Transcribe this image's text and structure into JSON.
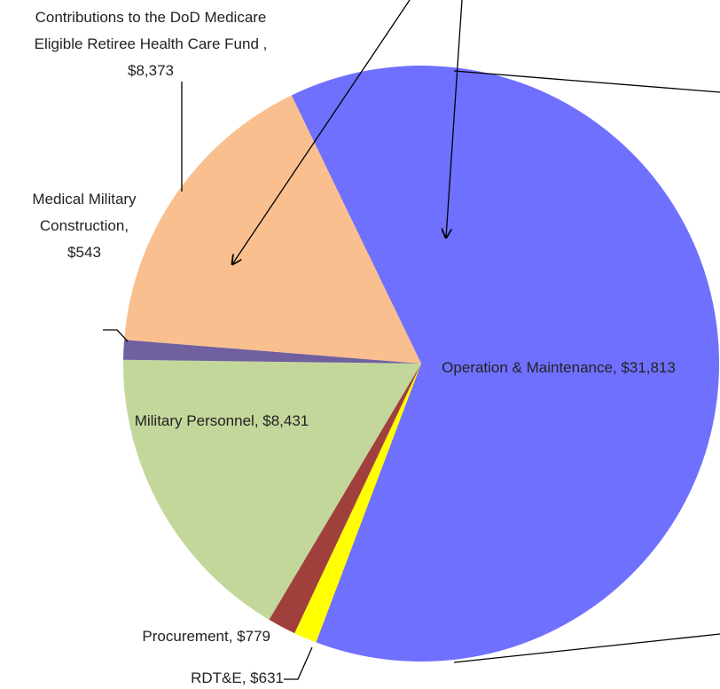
{
  "chart_data": {
    "type": "pie",
    "values": [
      31813,
      631,
      779,
      8431,
      543,
      8373
    ],
    "value_labels": [
      "Operation & Maintenance, $31,813",
      "RDT&E, $631",
      "Procurement, $779",
      "Military Personnel, $8,431",
      "Medical Military Construction, $543",
      "Contributions to the DoD Medicare Eligible Retiree Health Care Fund , $8,373"
    ],
    "colors": [
      "#7070ff",
      "#ffff00",
      "#a0403d",
      "#c4d79b",
      "#7060a0",
      "#f9bf8f"
    ]
  }
}
